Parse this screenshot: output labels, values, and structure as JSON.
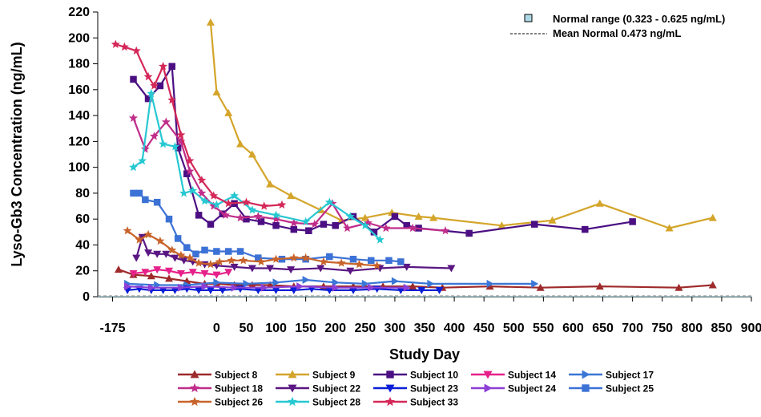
{
  "chart_data": {
    "type": "line",
    "title": "",
    "xlabel": "Study Day",
    "ylabel": "Lyso-Gb3 Concentration (ng/mL)",
    "xlim": [
      -200,
      900
    ],
    "ylim": [
      0,
      220
    ],
    "x_ticks": [
      -175,
      0,
      50,
      100,
      150,
      200,
      250,
      300,
      350,
      400,
      450,
      500,
      550,
      600,
      650,
      700,
      750,
      800,
      850,
      900
    ],
    "x_tick_labels": [
      "-175",
      "0",
      "50",
      "100",
      "150",
      "200",
      "250",
      "300",
      "350",
      "400",
      "450",
      "500",
      "550",
      "600",
      "650",
      "700",
      "750",
      "800",
      "850",
      "900"
    ],
    "y_ticks": [
      0,
      20,
      40,
      60,
      80,
      100,
      120,
      140,
      160,
      180,
      200,
      220
    ],
    "normal_range_label": "Normal range (0.323 - 0.625 ng/mL)",
    "normal_range": [
      0.323,
      0.625
    ],
    "mean_normal_label": "Mean Normal 0.473 ng/mL",
    "mean_normal": 0.473,
    "series": [
      {
        "name": "Subject 8",
        "color": "#9E2A2B",
        "marker": "triangle-up",
        "x": [
          -165,
          -140,
          -110,
          -80,
          -50,
          -20,
          0,
          30,
          60,
          90,
          130,
          180,
          230,
          280,
          330,
          380,
          460,
          545,
          645,
          778,
          835
        ],
        "y": [
          21,
          17,
          16,
          14,
          12,
          10,
          10,
          9,
          9,
          9,
          8,
          8,
          8,
          8,
          8,
          7,
          8,
          7,
          8,
          7,
          9
        ]
      },
      {
        "name": "Subject 9",
        "color": "#D4A52A",
        "marker": "triangle-up",
        "x": [
          -10,
          0,
          20,
          40,
          60,
          90,
          125,
          175,
          210,
          250,
          295,
          340,
          365,
          480,
          565,
          645,
          762,
          835
        ],
        "y": [
          212,
          158,
          142,
          118,
          110,
          87,
          78,
          67,
          59,
          61,
          65,
          62,
          61,
          55,
          59,
          72,
          53,
          61
        ]
      },
      {
        "name": "Subject 10",
        "color": "#4B0F83",
        "marker": "square",
        "x": [
          -140,
          -115,
          -95,
          -75,
          -65,
          -50,
          -30,
          -10,
          10,
          30,
          50,
          75,
          100,
          130,
          155,
          180,
          200,
          230,
          265,
          300,
          320,
          340,
          425,
          535,
          620,
          700
        ],
        "y": [
          168,
          153,
          163,
          178,
          115,
          95,
          63,
          56,
          64,
          72,
          60,
          58,
          55,
          52,
          51,
          56,
          55,
          62,
          50,
          62,
          55,
          53,
          49,
          56,
          52,
          58
        ]
      },
      {
        "name": "Subject 14",
        "color": "#E6218A",
        "marker": "triangle-down",
        "x": [
          -140,
          -120,
          -100,
          -80,
          -60,
          -40,
          -20,
          0,
          20
        ],
        "y": [
          18,
          19,
          21,
          20,
          18,
          19,
          18,
          17,
          19
        ]
      },
      {
        "name": "Subject 17",
        "color": "#3A76D6",
        "marker": "triangle-right",
        "x": [
          -150,
          -100,
          -50,
          0,
          50,
          100,
          150,
          200,
          250,
          300,
          360,
          460,
          535
        ],
        "y": [
          10,
          9,
          9,
          11,
          10,
          11,
          13,
          11,
          10,
          12,
          10,
          10,
          10
        ]
      },
      {
        "name": "Subject 18",
        "color": "#C02D8A",
        "marker": "star",
        "x": [
          -140,
          -120,
          -105,
          -85,
          -60,
          -45,
          -25,
          -5,
          15,
          40,
          70,
          100,
          130,
          165,
          195,
          220,
          255,
          285,
          330,
          385
        ],
        "y": [
          138,
          114,
          124,
          135,
          120,
          97,
          80,
          70,
          63,
          61,
          62,
          60,
          57,
          56,
          72,
          53,
          57,
          53,
          53,
          51
        ]
      },
      {
        "name": "Subject 22",
        "color": "#5A1682",
        "marker": "triangle-down",
        "x": [
          -135,
          -125,
          -115,
          -100,
          -85,
          -70,
          -55,
          -40,
          -20,
          0,
          30,
          60,
          90,
          125,
          175,
          225,
          275,
          320,
          395
        ],
        "y": [
          30,
          46,
          34,
          33,
          33,
          30,
          28,
          27,
          25,
          24,
          23,
          22,
          22,
          21,
          22,
          20,
          22,
          23,
          22
        ]
      },
      {
        "name": "Subject 23",
        "color": "#0A1FD6",
        "marker": "triangle-down",
        "x": [
          -150,
          -130,
          -110,
          -90,
          -70,
          -50,
          -30,
          -10,
          10,
          40,
          70,
          100,
          130,
          160,
          190,
          230,
          270,
          310,
          345,
          375
        ],
        "y": [
          5,
          6,
          5,
          5,
          5,
          6,
          5,
          5,
          5,
          6,
          5,
          5,
          5,
          6,
          5,
          5,
          6,
          5,
          5,
          5
        ]
      },
      {
        "name": "Subject 24",
        "color": "#8E3FD6",
        "marker": "triangle-right",
        "x": [
          -150,
          -110,
          -60,
          -20,
          30,
          80,
          140,
          200,
          260,
          320
        ],
        "y": [
          8,
          7,
          7,
          8,
          7,
          7,
          8,
          7,
          7,
          7
        ]
      },
      {
        "name": "Subject 25",
        "color": "#3C72D6",
        "marker": "square",
        "x": [
          -140,
          -130,
          -120,
          -100,
          -80,
          -65,
          -50,
          -35,
          -20,
          0,
          20,
          40,
          70,
          110,
          150,
          190,
          230,
          260,
          290,
          310
        ],
        "y": [
          80,
          80,
          75,
          73,
          60,
          45,
          38,
          33,
          36,
          35,
          35,
          35,
          30,
          29,
          29,
          31,
          29,
          28,
          28,
          27
        ]
      },
      {
        "name": "Subject 26",
        "color": "#C8632A",
        "marker": "star",
        "x": [
          -150,
          -130,
          -115,
          -95,
          -75,
          -60,
          -45,
          -30,
          -10,
          5,
          25,
          45,
          75,
          100,
          130,
          150,
          180,
          210,
          240,
          270
        ],
        "y": [
          51,
          44,
          48,
          43,
          36,
          32,
          30,
          26,
          25,
          27,
          28,
          28,
          27,
          29,
          30,
          30,
          27,
          26,
          25,
          24
        ]
      },
      {
        "name": "Subject 28",
        "color": "#26C8D2",
        "marker": "star",
        "x": [
          -140,
          -125,
          -110,
          -90,
          -70,
          -55,
          -40,
          -20,
          0,
          30,
          60,
          100,
          150,
          190,
          225,
          250,
          275
        ],
        "y": [
          100,
          105,
          157,
          118,
          116,
          80,
          82,
          74,
          71,
          78,
          67,
          63,
          58,
          73,
          62,
          55,
          44
        ]
      },
      {
        "name": "Subject 33",
        "color": "#D42858",
        "marker": "star",
        "x": [
          -170,
          -155,
          -135,
          -115,
          -105,
          -90,
          -75,
          -60,
          -45,
          -25,
          -5,
          20,
          50,
          80,
          110
        ],
        "y": [
          195,
          193,
          190,
          170,
          163,
          178,
          152,
          125,
          105,
          90,
          78,
          72,
          73,
          70,
          71
        ]
      }
    ]
  }
}
